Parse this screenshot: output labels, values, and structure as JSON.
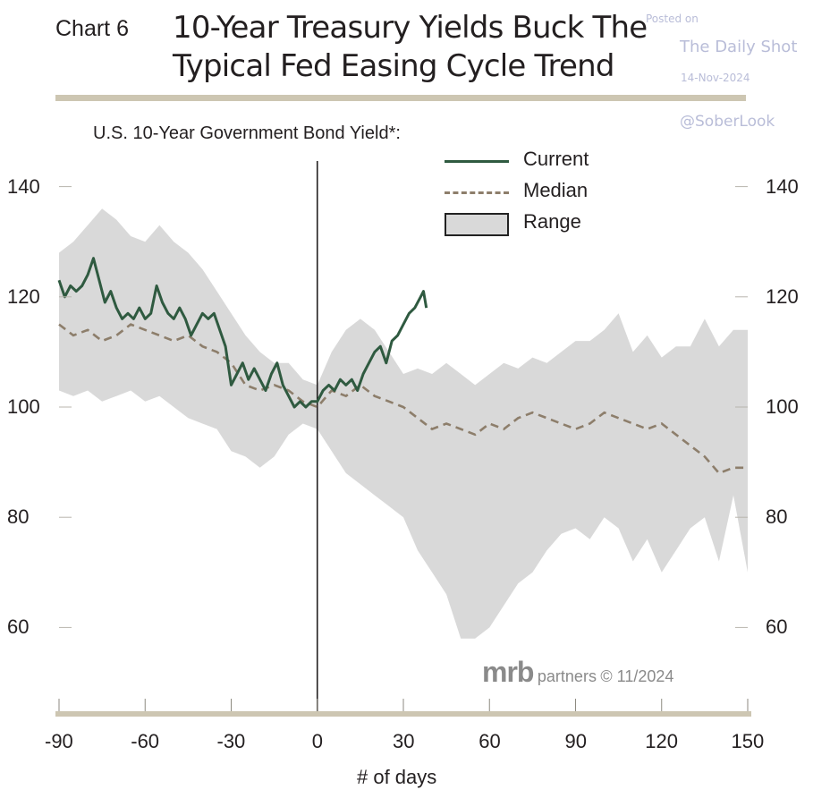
{
  "chart_number": "Chart 6",
  "title_lines": [
    "10-Year Treasury Yields Buck The",
    "Typical Fed Easing Cycle Trend"
  ],
  "watermark": {
    "posted": "Posted on",
    "site": "The Daily Shot",
    "date": "14-Nov-2024",
    "handle": "@SoberLook"
  },
  "source": {
    "brand": "mrb",
    "partners": "partners",
    "date": "© 11/2024"
  },
  "colors": {
    "current": "#2f5a40",
    "median": "#8d7e6b",
    "range": "#d9d9d9",
    "rule": "#cdc6b2"
  },
  "chart_data": {
    "type": "line",
    "title": "U.S. 10-Year Government Bond Yield*:",
    "xlabel": "# of days",
    "ylabel": "",
    "xlim": [
      -90,
      150
    ],
    "ylim": [
      45,
      145
    ],
    "xticks": [
      -90,
      -60,
      -30,
      0,
      30,
      60,
      90,
      120,
      150
    ],
    "yticks": [
      140,
      120,
      100,
      80,
      60
    ],
    "grid": false,
    "legend_position": "top-center",
    "vline_x": 0,
    "legend": [
      {
        "key": "current",
        "label": "Current"
      },
      {
        "key": "median",
        "label": "Median"
      },
      {
        "key": "range",
        "label": "Range"
      }
    ],
    "series": [
      {
        "name": "Current",
        "x": [
          -90,
          -88,
          -86,
          -84,
          -82,
          -80,
          -78,
          -76,
          -74,
          -72,
          -70,
          -68,
          -66,
          -64,
          -62,
          -60,
          -58,
          -56,
          -54,
          -52,
          -50,
          -48,
          -46,
          -44,
          -42,
          -40,
          -38,
          -36,
          -34,
          -32,
          -30,
          -28,
          -26,
          -24,
          -22,
          -20,
          -18,
          -16,
          -14,
          -12,
          -10,
          -8,
          -6,
          -4,
          -2,
          0,
          2,
          4,
          6,
          8,
          10,
          12,
          14,
          16,
          18,
          20,
          22,
          24,
          26,
          28,
          30,
          32,
          34,
          36,
          37,
          38
        ],
        "values": [
          123,
          120,
          122,
          121,
          122,
          124,
          127,
          123,
          119,
          121,
          118,
          116,
          117,
          116,
          118,
          116,
          117,
          122,
          119,
          117,
          116,
          118,
          116,
          113,
          115,
          117,
          116,
          117,
          114,
          111,
          104,
          106,
          108,
          105,
          107,
          105,
          103,
          106,
          108,
          104,
          102,
          100,
          101,
          100,
          101,
          101,
          103,
          104,
          103,
          105,
          104,
          105,
          103,
          106,
          108,
          110,
          111,
          108,
          112,
          113,
          115,
          117,
          118,
          120,
          121,
          118
        ]
      },
      {
        "name": "Median",
        "x": [
          -90,
          -85,
          -80,
          -75,
          -70,
          -65,
          -60,
          -55,
          -50,
          -45,
          -40,
          -35,
          -30,
          -25,
          -20,
          -15,
          -10,
          -5,
          0,
          5,
          10,
          15,
          20,
          25,
          30,
          35,
          40,
          45,
          50,
          55,
          60,
          65,
          70,
          75,
          80,
          85,
          90,
          95,
          100,
          105,
          110,
          115,
          120,
          125,
          130,
          135,
          140,
          145,
          150
        ],
        "values": [
          115,
          113,
          114,
          112,
          113,
          115,
          114,
          113,
          112,
          113,
          111,
          110,
          108,
          104,
          103,
          104,
          103,
          101,
          100,
          103,
          102,
          104,
          102,
          101,
          100,
          98,
          96,
          97,
          96,
          95,
          97,
          96,
          98,
          99,
          98,
          97,
          96,
          97,
          99,
          98,
          97,
          96,
          97,
          95,
          93,
          91,
          88,
          89,
          89
        ]
      }
    ],
    "range": {
      "x": [
        -90,
        -85,
        -80,
        -75,
        -70,
        -65,
        -60,
        -55,
        -50,
        -45,
        -40,
        -35,
        -30,
        -25,
        -20,
        -15,
        -10,
        -5,
        0,
        5,
        10,
        15,
        20,
        25,
        30,
        35,
        40,
        45,
        50,
        55,
        60,
        65,
        70,
        75,
        80,
        85,
        90,
        95,
        100,
        105,
        110,
        115,
        120,
        125,
        130,
        135,
        140,
        145,
        150
      ],
      "low": [
        103,
        102,
        103,
        101,
        102,
        103,
        101,
        102,
        100,
        98,
        97,
        96,
        92,
        91,
        89,
        91,
        95,
        97,
        96,
        92,
        88,
        86,
        84,
        82,
        80,
        74,
        70,
        66,
        58,
        58,
        60,
        64,
        68,
        70,
        74,
        77,
        78,
        76,
        80,
        78,
        72,
        76,
        70,
        74,
        78,
        80,
        72,
        84,
        70
      ],
      "high": [
        128,
        130,
        133,
        136,
        134,
        131,
        130,
        133,
        130,
        128,
        125,
        121,
        117,
        113,
        110,
        108,
        108,
        105,
        104,
        110,
        114,
        116,
        114,
        110,
        106,
        107,
        106,
        108,
        106,
        104,
        106,
        108,
        107,
        109,
        108,
        110,
        112,
        112,
        114,
        117,
        110,
        113,
        109,
        111,
        111,
        116,
        111,
        114,
        114
      ]
    }
  }
}
